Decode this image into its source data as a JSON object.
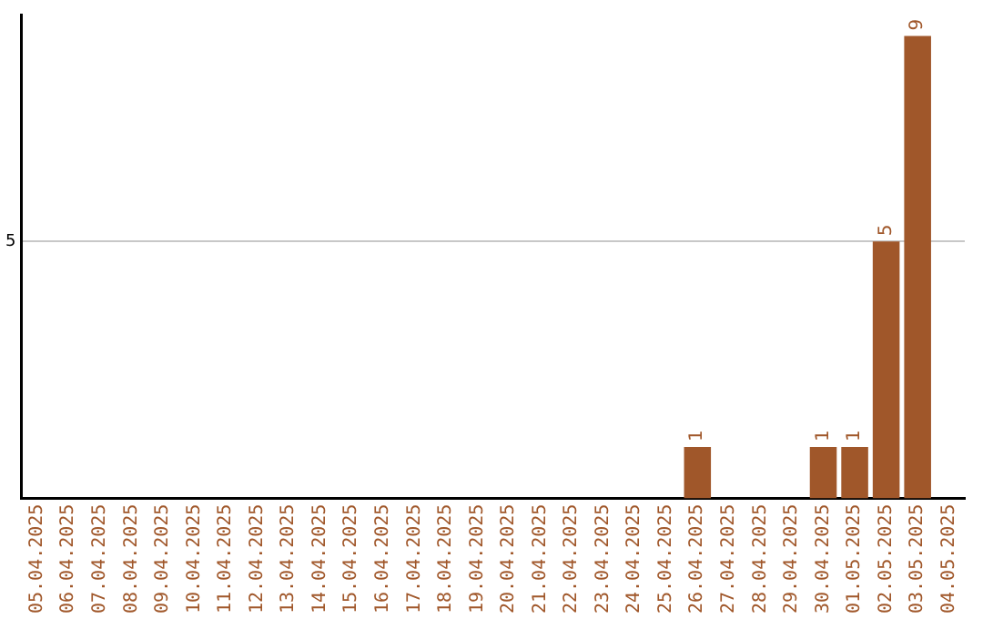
{
  "chart_data": {
    "type": "bar",
    "categories": [
      "05.04.2025",
      "06.04.2025",
      "07.04.2025",
      "08.04.2025",
      "09.04.2025",
      "10.04.2025",
      "11.04.2025",
      "12.04.2025",
      "13.04.2025",
      "14.04.2025",
      "15.04.2025",
      "16.04.2025",
      "17.04.2025",
      "18.04.2025",
      "19.04.2025",
      "20.04.2025",
      "21.04.2025",
      "22.04.2025",
      "23.04.2025",
      "24.04.2025",
      "25.04.2025",
      "26.04.2025",
      "27.04.2025",
      "28.04.2025",
      "29.04.2025",
      "30.04.2025",
      "01.05.2025",
      "02.05.2025",
      "03.05.2025",
      "04.05.2025"
    ],
    "values": [
      null,
      null,
      null,
      null,
      null,
      null,
      null,
      null,
      null,
      null,
      null,
      null,
      null,
      null,
      null,
      null,
      null,
      null,
      null,
      null,
      null,
      1,
      null,
      null,
      null,
      1,
      1,
      5,
      9,
      null
    ],
    "data_labels": true,
    "color": "#a0572a",
    "ylim": [
      0,
      9.4
    ],
    "yticks": [
      5
    ],
    "grid": "y",
    "legend": false
  }
}
